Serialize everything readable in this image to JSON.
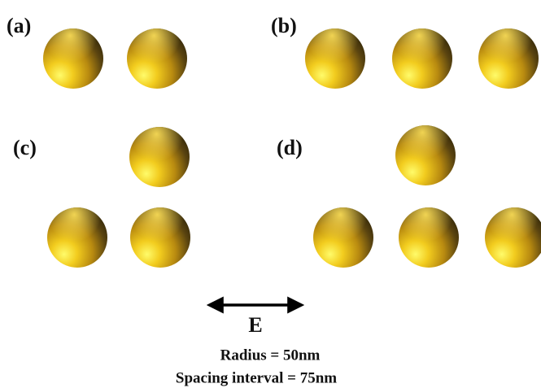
{
  "panels": [
    {
      "label": "(a)"
    },
    {
      "label": "(b)"
    },
    {
      "label": "(c)"
    },
    {
      "label": "(d)"
    }
  ],
  "field_label": "E",
  "radius_text": "Radius = 50nm",
  "spacing_text": "Spacing interval = 75nm"
}
